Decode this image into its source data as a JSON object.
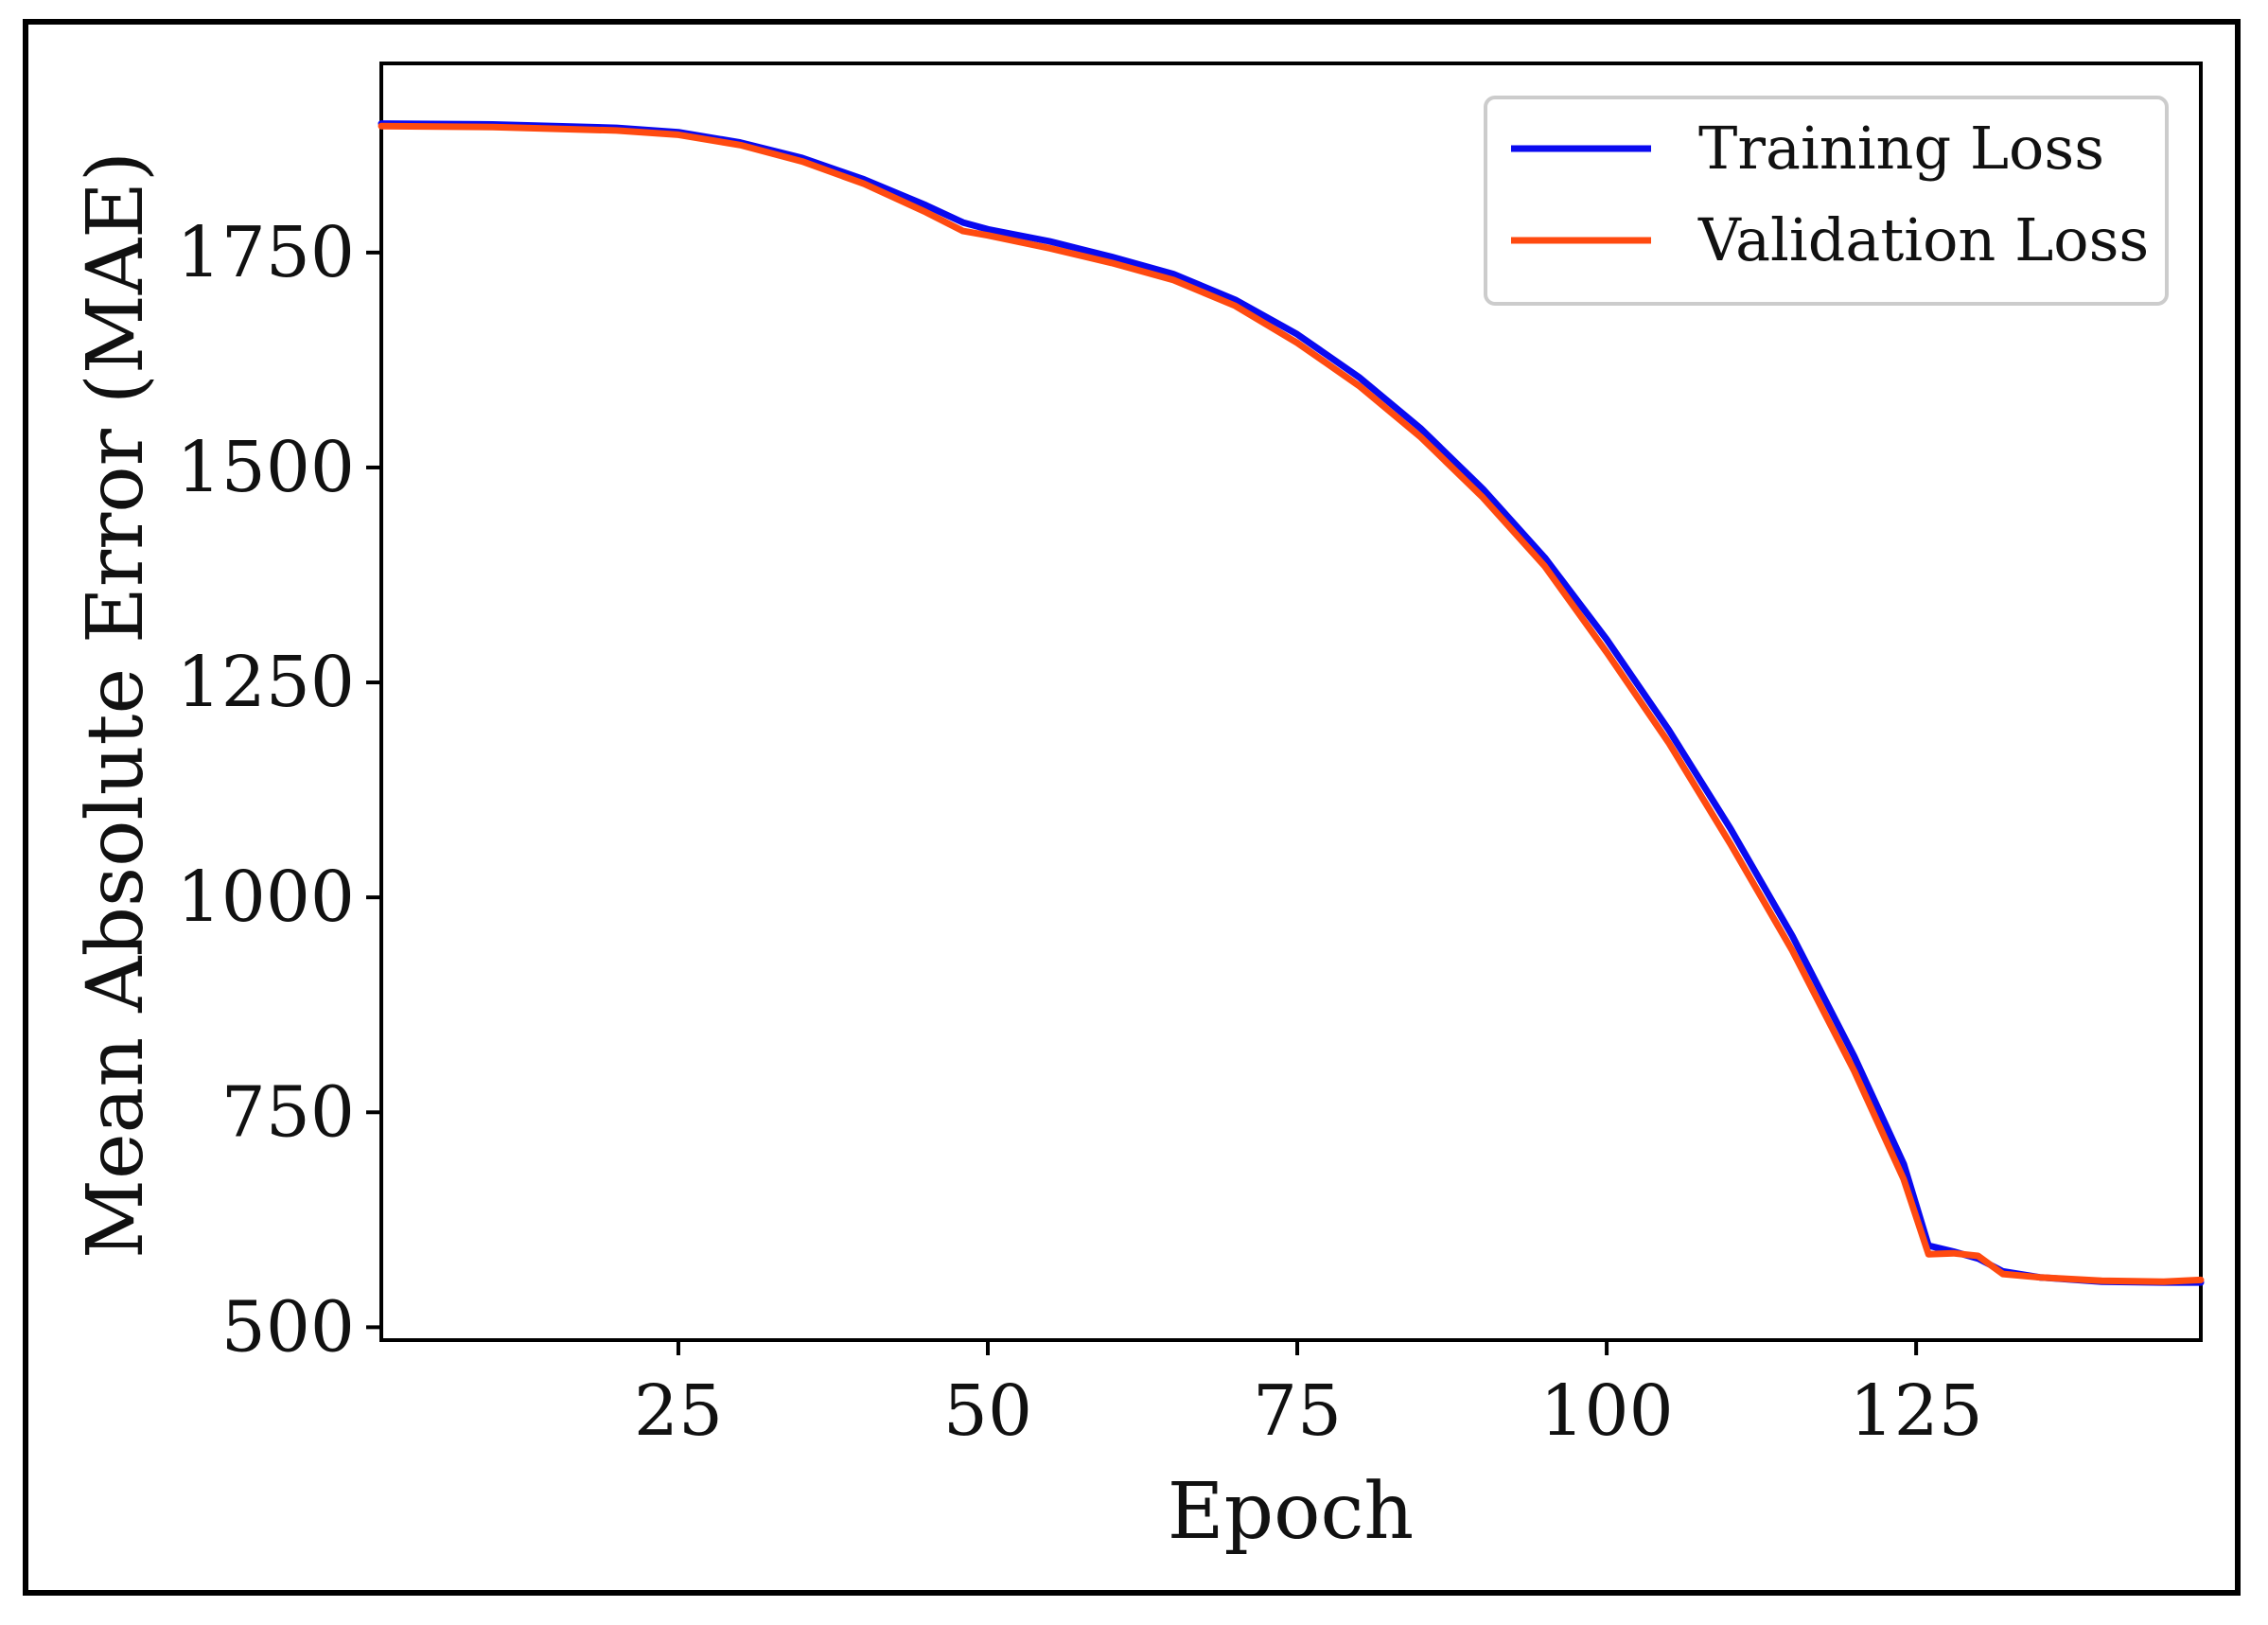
{
  "chart_data": {
    "type": "line",
    "title": "",
    "xlabel": "Epoch",
    "ylabel": "Mean Absolute Error (MAE)",
    "xlim": [
      1,
      148
    ],
    "ylim": [
      485,
      1970
    ],
    "xticks": [
      25,
      50,
      75,
      100,
      125
    ],
    "yticks": [
      500,
      750,
      1000,
      1250,
      1500,
      1750
    ],
    "grid": false,
    "legend_position": "top-right",
    "series": [
      {
        "name": "Training Loss",
        "color": "#0a0af0",
        "x": [
          1,
          10,
          20,
          25,
          30,
          35,
          40,
          45,
          48,
          50,
          55,
          60,
          65,
          70,
          75,
          80,
          85,
          90,
          95,
          100,
          105,
          110,
          115,
          120,
          124,
          126,
          128,
          130,
          132,
          135,
          140,
          145,
          148
        ],
        "y": [
          1900,
          1899,
          1895,
          1890,
          1878,
          1860,
          1835,
          1805,
          1785,
          1777,
          1763,
          1745,
          1725,
          1695,
          1655,
          1605,
          1545,
          1475,
          1395,
          1300,
          1195,
          1080,
          955,
          815,
          690,
          595,
          588,
          580,
          565,
          558,
          553,
          552,
          552
        ]
      },
      {
        "name": "Validation Loss",
        "color": "#ff4a10",
        "x": [
          1,
          10,
          20,
          25,
          30,
          35,
          40,
          45,
          48,
          50,
          55,
          60,
          65,
          70,
          75,
          80,
          85,
          90,
          95,
          100,
          105,
          110,
          115,
          120,
          124,
          126,
          128,
          130,
          132,
          135,
          140,
          145,
          148
        ],
        "y": [
          1897,
          1896,
          1892,
          1887,
          1875,
          1856,
          1830,
          1797,
          1775,
          1770,
          1755,
          1738,
          1718,
          1688,
          1645,
          1595,
          1535,
          1465,
          1385,
          1285,
          1180,
          1062,
          938,
          798,
          672,
          585,
          586,
          583,
          562,
          558,
          554,
          553,
          555
        ]
      }
    ]
  }
}
